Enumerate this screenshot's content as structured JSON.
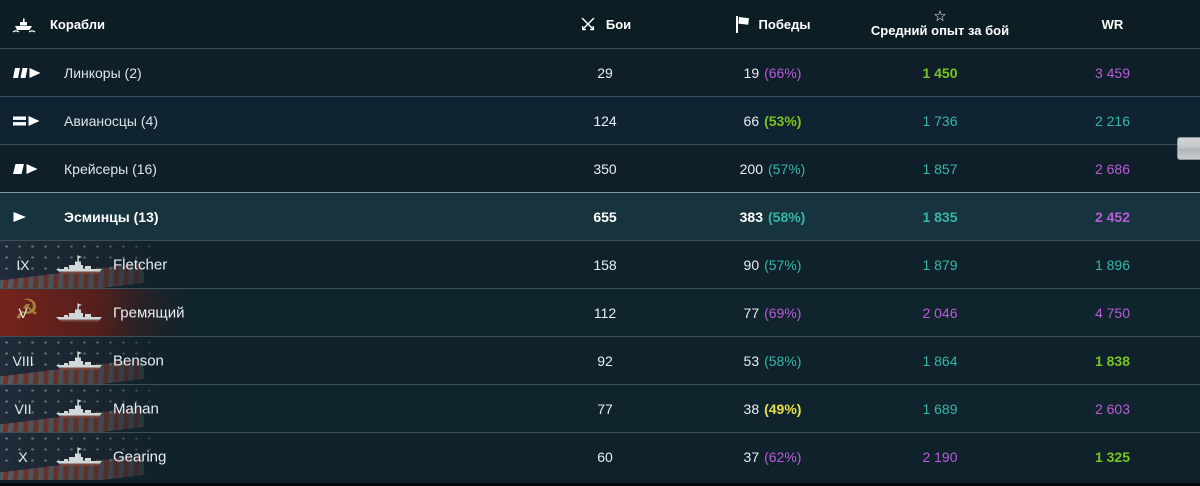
{
  "colors": {
    "teal": "#36b6a5",
    "purple": "#b75cd8",
    "green": "#7ac41f",
    "yellow": "#e3e04b",
    "white": "#e9eef0",
    "row_highlight": "#17333d"
  },
  "header": {
    "ships_label": "Корабли",
    "battles_label": "Бои",
    "wins_label": "Победы",
    "xp_label": "Средний опыт за бой",
    "wr_label": "WR",
    "star_glyph": "☆",
    "icons": {
      "ships": "ship-icon",
      "battles": "crossed-swords-icon",
      "wins": "flag-icon",
      "xp": "star-icon"
    }
  },
  "table": {
    "rows": [
      {
        "type": "class",
        "icon": "battleship",
        "name": "Линкоры (2)",
        "battles": "29",
        "wins": "19",
        "winrate": "(66%)",
        "winrate_color": "purple",
        "xp": "1 450",
        "xp_color": "green",
        "wr": "3 459",
        "wr_color": "purple"
      },
      {
        "type": "class",
        "icon": "carrier",
        "name": "Авианосцы (4)",
        "battles": "124",
        "wins": "66",
        "winrate": "(53%)",
        "winrate_color": "green",
        "xp": "1 736",
        "xp_color": "teal",
        "wr": "2 216",
        "wr_color": "teal"
      },
      {
        "type": "class",
        "icon": "cruiser",
        "name": "Крейсеры (16)",
        "battles": "350",
        "wins": "200",
        "winrate": "(57%)",
        "winrate_color": "teal",
        "xp": "1 857",
        "xp_color": "teal",
        "wr": "2 686",
        "wr_color": "purple"
      },
      {
        "type": "class",
        "icon": "destroyer",
        "name": "Эсминцы (13)",
        "battles": "655",
        "wins": "383",
        "winrate": "(58%)",
        "winrate_color": "teal",
        "xp": "1 835",
        "xp_color": "teal",
        "wr": "2 452",
        "wr_color": "purple",
        "expanded": true,
        "bold": true
      },
      {
        "type": "ship",
        "tier": "IX",
        "flag": "usa",
        "name": "Fletcher",
        "battles": "158",
        "wins": "90",
        "winrate": "(57%)",
        "winrate_color": "teal",
        "xp": "1 879",
        "xp_color": "teal",
        "wr": "1 896",
        "wr_color": "teal"
      },
      {
        "type": "ship",
        "tier": "V",
        "flag": "ussr",
        "name": "Гремящий",
        "battles": "112",
        "wins": "77",
        "winrate": "(69%)",
        "winrate_color": "purple",
        "xp": "2 046",
        "xp_color": "purple",
        "wr": "4 750",
        "wr_color": "purple"
      },
      {
        "type": "ship",
        "tier": "VIII",
        "flag": "usa",
        "name": "Benson",
        "battles": "92",
        "wins": "53",
        "winrate": "(58%)",
        "winrate_color": "teal",
        "xp": "1 864",
        "xp_color": "teal",
        "wr": "1 838",
        "wr_color": "green"
      },
      {
        "type": "ship",
        "tier": "VII",
        "flag": "usa",
        "name": "Mahan",
        "battles": "77",
        "wins": "38",
        "winrate": "(49%)",
        "winrate_color": "yellow",
        "xp": "1 689",
        "xp_color": "teal",
        "wr": "2 603",
        "wr_color": "purple"
      },
      {
        "type": "ship",
        "tier": "X",
        "flag": "usa",
        "name": "Gearing",
        "battles": "60",
        "wins": "37",
        "winrate": "(62%)",
        "winrate_color": "purple",
        "xp": "2 190",
        "xp_color": "purple",
        "wr": "1 325",
        "wr_color": "green"
      }
    ]
  },
  "ussr_emblem_glyph": "☭"
}
